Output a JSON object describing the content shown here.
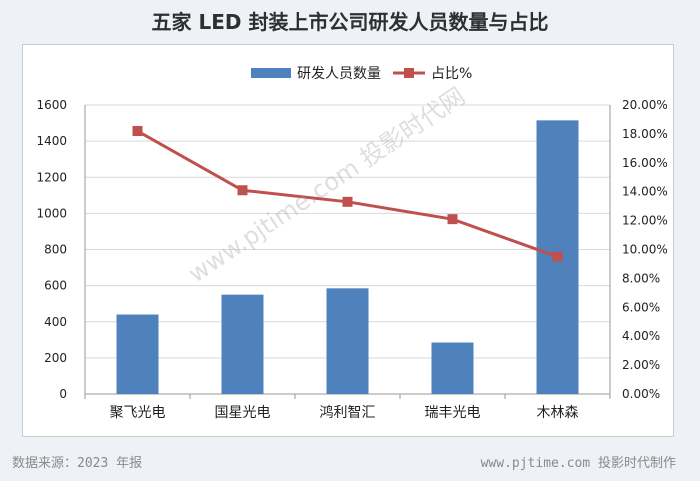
{
  "header": {
    "title": "五家 LED 封装上市公司研发人员数量与占比"
  },
  "footer": {
    "source": "数据来源：2023 年报",
    "credit": "www.pjtime.com 投影时代制作"
  },
  "watermark": "www.pjtime.com 投影时代网",
  "colors": {
    "bar": "#4f81bd",
    "line": "#c0504d",
    "grid": "#d9d9d9",
    "axis_text": "#222222"
  },
  "chart_data": {
    "type": "bar",
    "categories": [
      "聚飞光电",
      "国星光电",
      "鸿利智汇",
      "瑞丰光电",
      "木林森"
    ],
    "series": [
      {
        "name": "研发人员数量",
        "type": "bar",
        "axis": "left",
        "values": [
          440,
          550,
          585,
          285,
          1515
        ]
      },
      {
        "name": "占比%",
        "type": "line",
        "axis": "right",
        "values": [
          18.2,
          14.1,
          13.3,
          12.1,
          9.5
        ]
      }
    ],
    "y_left": {
      "ticks": [
        "0",
        "200",
        "400",
        "600",
        "800",
        "1000",
        "1200",
        "1400",
        "1600"
      ],
      "ylim": [
        0,
        1600
      ]
    },
    "y_right": {
      "ticks": [
        "0.00%",
        "2.00%",
        "4.00%",
        "6.00%",
        "8.00%",
        "10.00%",
        "12.00%",
        "14.00%",
        "16.00%",
        "18.00%",
        "20.00%"
      ],
      "ylim": [
        0,
        20
      ]
    },
    "legend": "top-center",
    "grid": true
  }
}
